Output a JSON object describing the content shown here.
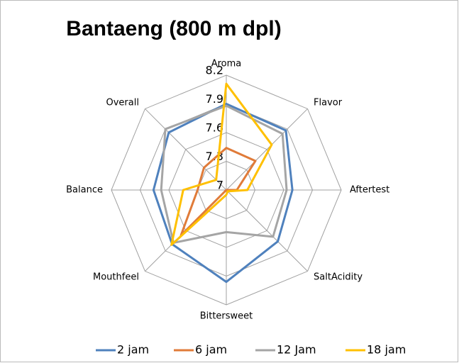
{
  "chart_data": {
    "type": "radar",
    "title": "Bantaeng (800 m dpl)",
    "categories": [
      "Aroma",
      "Flavor",
      "Aftertest",
      "SaltAcidity",
      "Bittersweet",
      "Mouthfeel",
      "Balance",
      "Overall"
    ],
    "ylim": [
      7,
      8.2
    ],
    "yticks": [
      7,
      7.3,
      7.6,
      7.9,
      8.2
    ],
    "grid": true,
    "legend": "bottom",
    "series": [
      {
        "name": "2 jam",
        "color": "#4f81bd",
        "values": [
          7.9,
          7.88,
          7.69,
          7.76,
          7.96,
          7.8,
          7.76,
          7.85
        ]
      },
      {
        "name": "6 jam",
        "color": "#e07b39",
        "values": [
          7.44,
          7.43,
          7.11,
          7.0,
          7.0,
          7.67,
          7.3,
          7.33
        ]
      },
      {
        "name": "12 Jam",
        "color": "#a5a5a5",
        "values": [
          7.88,
          7.83,
          7.63,
          7.69,
          7.44,
          7.78,
          7.68,
          7.9
        ]
      },
      {
        "name": "18 jam",
        "color": "#ffc000",
        "values": [
          8.11,
          7.67,
          7.22,
          7.02,
          7.05,
          7.81,
          7.45,
          7.15
        ]
      }
    ]
  }
}
